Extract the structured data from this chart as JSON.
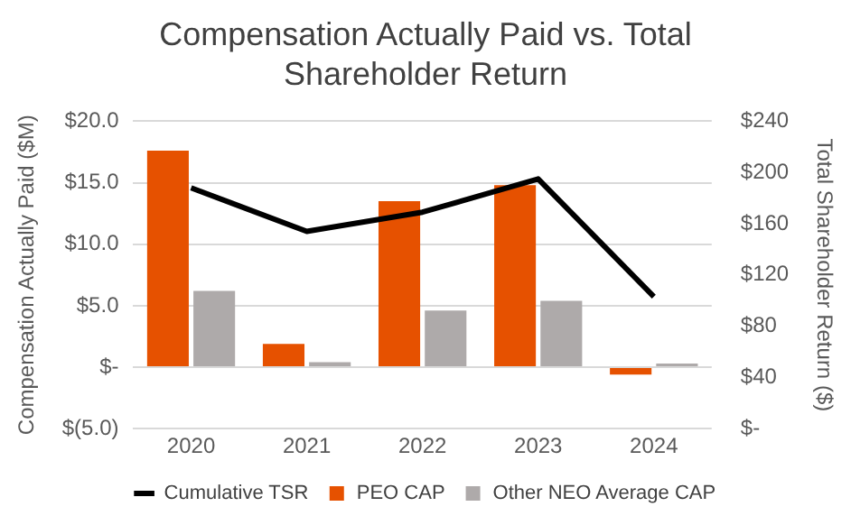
{
  "chart_data": {
    "type": "bar",
    "title": "Compensation Actually Paid vs. Total Shareholder Return",
    "ylabel": "Compensation Actually Paid ($M)",
    "y2label": "Total Shareholder Return ($)",
    "categories": [
      "2020",
      "2021",
      "2022",
      "2023",
      "2024"
    ],
    "series": [
      {
        "name": "PEO CAP",
        "color": "#e65100",
        "values": [
          17.6,
          1.9,
          13.5,
          14.8,
          -0.6
        ]
      },
      {
        "name": "Other NEO Average CAP",
        "color": "#aeaaaa",
        "values": [
          6.2,
          0.4,
          4.6,
          5.4,
          0.3
        ]
      },
      {
        "name": "Cumulative TSR",
        "type": "line",
        "axis": "y2",
        "color": "#000000",
        "values": [
          188,
          154,
          169,
          195,
          103
        ]
      }
    ],
    "ylim": [
      -5,
      20
    ],
    "yticks": [
      {
        "value": -5,
        "label": "$(5.0)"
      },
      {
        "value": 0,
        "label": "$-"
      },
      {
        "value": 5,
        "label": "$5.0"
      },
      {
        "value": 10,
        "label": "$10.0"
      },
      {
        "value": 15,
        "label": "$15.0"
      },
      {
        "value": 20,
        "label": "$20.0"
      }
    ],
    "y2lim": [
      0,
      240
    ],
    "y2ticks": [
      {
        "value": 0,
        "label": "$-"
      },
      {
        "value": 40,
        "label": "$40"
      },
      {
        "value": 80,
        "label": "$80"
      },
      {
        "value": 120,
        "label": "$120"
      },
      {
        "value": 160,
        "label": "$160"
      },
      {
        "value": 200,
        "label": "$200"
      },
      {
        "value": 240,
        "label": "$240"
      }
    ],
    "grid": "y",
    "legend": "bottom",
    "marker": "none",
    "line_style": "solid"
  }
}
